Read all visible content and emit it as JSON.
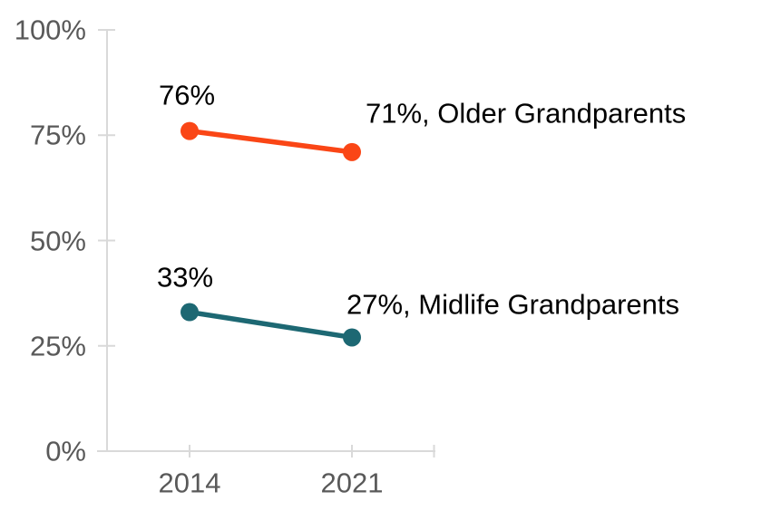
{
  "chart_data": {
    "type": "line",
    "title": "",
    "xlabel": "",
    "ylabel": "",
    "categories": [
      "2014",
      "2021"
    ],
    "series": [
      {
        "name": "Older Grandparents",
        "color": "#FA4616",
        "values": [
          76,
          71
        ],
        "start_label": "76%",
        "end_label": "71%, Older Grandparents"
      },
      {
        "name": "Midlife Grandparents",
        "color": "#1D6873",
        "values": [
          33,
          27
        ],
        "start_label": "33%",
        "end_label": "27%, Midlife Grandparents"
      }
    ],
    "yticks": {
      "labels": [
        "100%",
        "75%",
        "50%",
        "25%",
        "0%"
      ],
      "values": [
        100,
        75,
        50,
        25,
        0
      ]
    },
    "ylim": [
      0,
      100
    ],
    "grid": "off",
    "legend": "inline-end-labels",
    "colors": {
      "axis": "#D9D9D9",
      "tick_label": "#595959",
      "data_label": "#000000",
      "background": "#FFFFFF"
    }
  }
}
